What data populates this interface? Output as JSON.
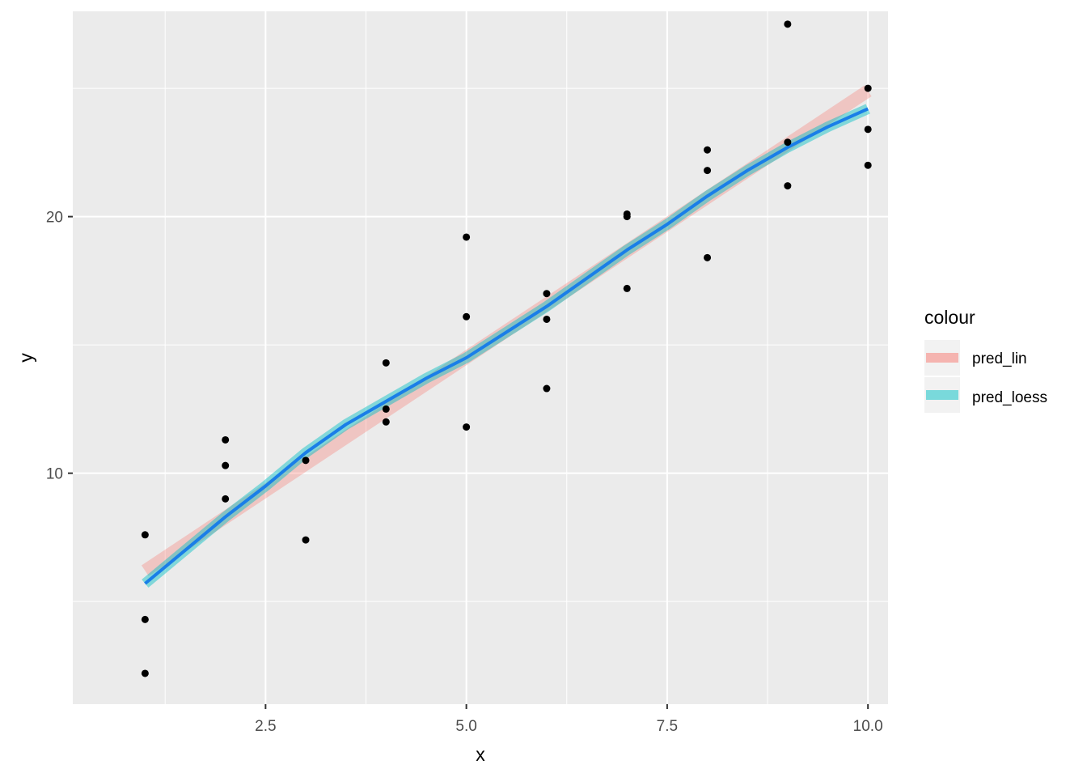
{
  "chart_data": {
    "type": "scatter",
    "xlabel": "x",
    "ylabel": "y",
    "xlim": [
      0.1,
      10.25
    ],
    "ylim": [
      1.0,
      28.0
    ],
    "x_ticks": [
      2.5,
      5.0,
      7.5,
      10.0
    ],
    "x_tick_labels": [
      "2.5",
      "5.0",
      "7.5",
      "10.0"
    ],
    "y_ticks": [
      10,
      20
    ],
    "y_tick_labels": [
      "10",
      "20"
    ],
    "x_minor_ticks": [
      1.25,
      3.75,
      6.25,
      8.75
    ],
    "y_minor_ticks": [
      5,
      15,
      25
    ],
    "grid": true,
    "legend": {
      "title": "colour",
      "placement": "right",
      "entries": [
        {
          "label": "pred_lin",
          "color": "#f8766d"
        },
        {
          "label": "pred_loess",
          "color": "#00bfc4"
        }
      ]
    },
    "points": {
      "x": [
        1,
        1,
        1,
        2,
        2,
        2,
        3,
        3,
        4,
        4,
        4,
        5,
        5,
        5,
        6,
        6,
        6,
        7,
        7,
        7,
        8,
        8,
        8,
        9,
        9,
        9,
        10,
        10,
        10
      ],
      "y": [
        7.6,
        4.3,
        2.2,
        11.3,
        10.3,
        9.0,
        10.5,
        7.4,
        14.3,
        12.5,
        12.0,
        19.2,
        16.1,
        11.8,
        17.0,
        16.0,
        13.3,
        20.1,
        20.0,
        17.2,
        22.6,
        21.8,
        18.4,
        27.5,
        22.9,
        21.2,
        25.0,
        23.4,
        22.0
      ]
    },
    "series": [
      {
        "name": "pred_lin",
        "color": "#f8766d",
        "x": [
          1,
          10
        ],
        "y": [
          6.2,
          24.9
        ]
      },
      {
        "name": "pred_loess",
        "color": "#00bfc4",
        "x": [
          1,
          1.5,
          2,
          2.5,
          3,
          3.5,
          4,
          4.5,
          5,
          5.5,
          6,
          6.5,
          7,
          7.5,
          8,
          8.5,
          9,
          9.5,
          10
        ],
        "y": [
          5.7,
          7.0,
          8.3,
          9.5,
          10.8,
          11.9,
          12.8,
          13.7,
          14.5,
          15.5,
          16.5,
          17.6,
          18.7,
          19.7,
          20.8,
          21.8,
          22.7,
          23.5,
          24.2
        ]
      },
      {
        "name": "",
        "color": "#1a7ee8",
        "x": [
          1,
          1.5,
          2,
          2.5,
          3,
          3.5,
          4,
          4.5,
          5,
          5.5,
          6,
          6.5,
          7,
          7.5,
          8,
          8.5,
          9,
          9.5,
          10
        ],
        "y": [
          5.7,
          7.0,
          8.3,
          9.5,
          10.8,
          11.9,
          12.8,
          13.7,
          14.5,
          15.5,
          16.5,
          17.6,
          18.7,
          19.7,
          20.8,
          21.8,
          22.7,
          23.5,
          24.2
        ]
      }
    ]
  }
}
